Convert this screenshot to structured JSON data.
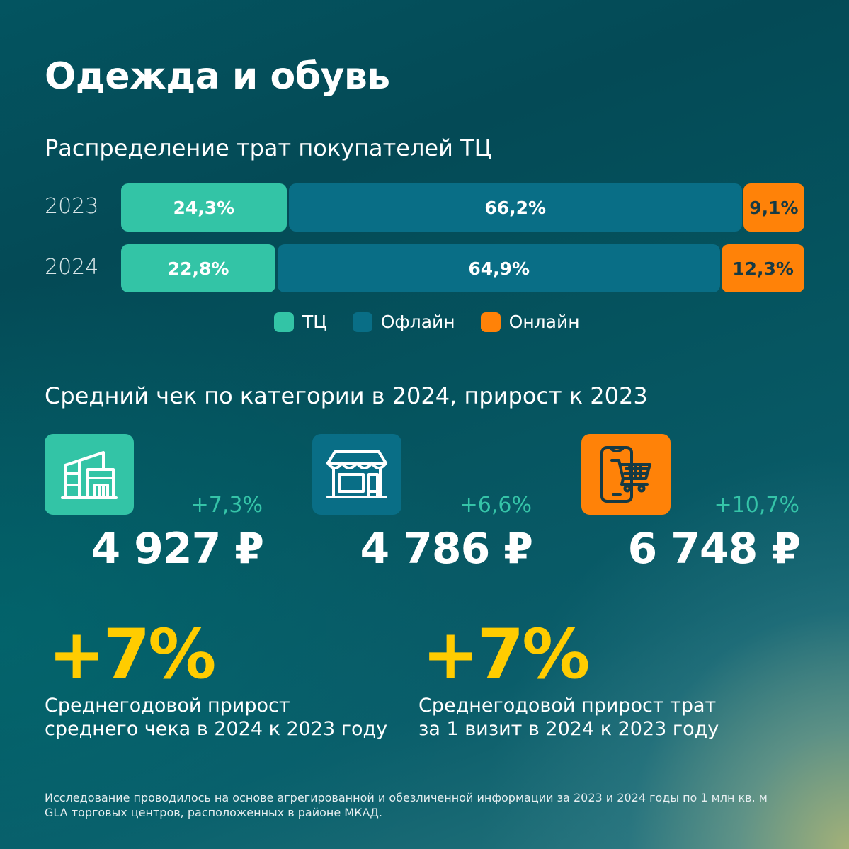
{
  "header": {
    "title": "Одежда и обувь"
  },
  "distribution": {
    "title": "Распределение трат покупателей ТЦ",
    "rows": [
      {
        "year": "2023",
        "segments": [
          {
            "key": "mall",
            "value": 24.3,
            "label": "24,3%"
          },
          {
            "key": "offline",
            "value": 66.2,
            "label": "66,2%"
          },
          {
            "key": "online",
            "value": 9.1,
            "label": "9,1%"
          }
        ]
      },
      {
        "year": "2024",
        "segments": [
          {
            "key": "mall",
            "value": 22.8,
            "label": "22,8%"
          },
          {
            "key": "offline",
            "value": 64.9,
            "label": "64,9%"
          },
          {
            "key": "online",
            "value": 12.3,
            "label": "12,3%"
          }
        ]
      }
    ],
    "legend": [
      {
        "key": "mall",
        "label": "ТЦ"
      },
      {
        "key": "offline",
        "label": "Офлайн"
      },
      {
        "key": "online",
        "label": "Онлайн"
      }
    ]
  },
  "colors": {
    "mall": "#33c4a6",
    "offline": "#096e86",
    "online": "#ff8208",
    "online_text": "#163a44",
    "accent_yellow": "#ffcc00",
    "delta_green": "#35c4a8"
  },
  "avg_check": {
    "title": "Средний чек по категории в 2024, прирост к 2023",
    "cards": [
      {
        "icon": "building-icon",
        "delta": "+7,3%",
        "amount": "4 927 ₽"
      },
      {
        "icon": "storefront-icon",
        "delta": "+6,6%",
        "amount": "4 786 ₽"
      },
      {
        "icon": "phone-cart-icon",
        "delta": "+10,7%",
        "amount": "6 748 ₽"
      }
    ]
  },
  "highlights": [
    {
      "value": "+7%",
      "line1": "Среднегодовой прирост",
      "line2": "среднего чека в 2024 к 2023 году"
    },
    {
      "value": "+7%",
      "line1": "Среднегодовой прирост трат",
      "line2": "за 1 визит в 2024 к 2023 году"
    }
  ],
  "footnote": {
    "line1": "Исследование проводилось на основе агрегированной и обезличенной информации за 2023 и 2024 годы по 1 млн кв. м",
    "line2": "GLA торговых центров, расположенных в районе МКАД."
  },
  "chart_data": {
    "type": "bar",
    "orientation": "horizontal",
    "stacked": true,
    "title": "Распределение трат покупателей ТЦ",
    "categories": [
      "2023",
      "2024"
    ],
    "series": [
      {
        "name": "ТЦ",
        "values": [
          24.3,
          22.8
        ]
      },
      {
        "name": "Офлайн",
        "values": [
          66.2,
          64.9
        ]
      },
      {
        "name": "Онлайн",
        "values": [
          9.1,
          12.3
        ]
      }
    ],
    "unit": "%",
    "xlim": [
      0,
      100
    ],
    "legend": "bottom-center"
  }
}
